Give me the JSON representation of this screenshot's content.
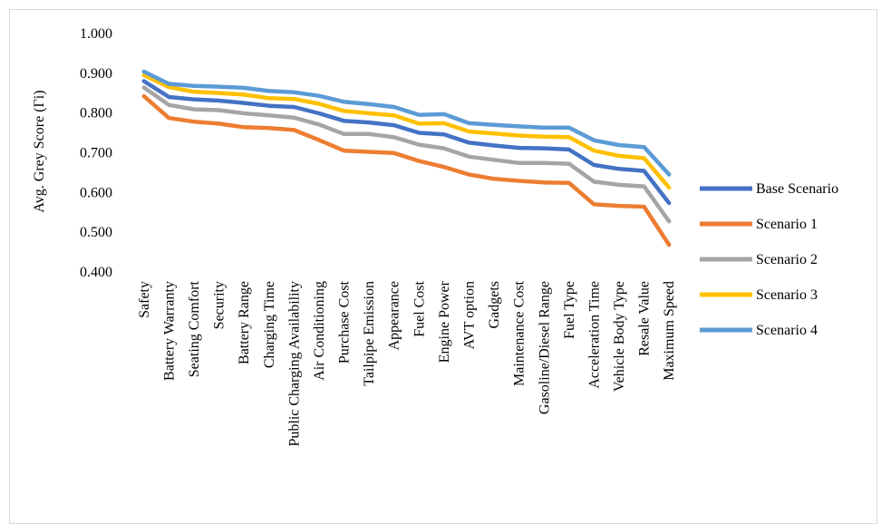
{
  "chart_data": {
    "type": "line",
    "ylabel": "Avg. Grey Score (Γi)",
    "ylim": [
      0.4,
      1.0
    ],
    "yticks": [
      "1.000",
      "0.900",
      "0.800",
      "0.700",
      "0.600",
      "0.500",
      "0.400"
    ],
    "grid": false,
    "legend_position": "right",
    "categories": [
      "Safety",
      "Battery Warranty",
      "Seating Comfort",
      "Security",
      "Battery Range",
      "Charging Time",
      "Public Charging Availability",
      "Air Conditioning",
      "Purchase Cost",
      "Tailpipe Emission",
      "Appearance",
      "Fuel Cost",
      "Engine Power",
      "AVT option",
      "Gadgets",
      "Maintenance Cost",
      "Gasoline/Diesel Range",
      "Fuel Type",
      "Acceleration Time",
      "Vehicle Body Type",
      "Resale Value",
      "Maximum Speed"
    ],
    "series": [
      {
        "name": "Base Scenario",
        "color": "#4472C4",
        "values": [
          0.878,
          0.838,
          0.832,
          0.829,
          0.823,
          0.816,
          0.813,
          0.797,
          0.778,
          0.774,
          0.767,
          0.748,
          0.744,
          0.723,
          0.716,
          0.71,
          0.709,
          0.706,
          0.667,
          0.657,
          0.652,
          0.571
        ]
      },
      {
        "name": "Scenario 1",
        "color": "#ED7D31",
        "values": [
          0.84,
          0.785,
          0.776,
          0.771,
          0.762,
          0.76,
          0.755,
          0.73,
          0.703,
          0.7,
          0.697,
          0.677,
          0.662,
          0.643,
          0.632,
          0.627,
          0.623,
          0.622,
          0.568,
          0.564,
          0.562,
          0.466
        ]
      },
      {
        "name": "Scenario 2",
        "color": "#A5A5A5",
        "values": [
          0.862,
          0.818,
          0.807,
          0.805,
          0.797,
          0.792,
          0.786,
          0.769,
          0.745,
          0.745,
          0.737,
          0.718,
          0.709,
          0.688,
          0.68,
          0.672,
          0.672,
          0.67,
          0.625,
          0.617,
          0.613,
          0.525
        ]
      },
      {
        "name": "Scenario 3",
        "color": "#FFC000",
        "values": [
          0.893,
          0.863,
          0.851,
          0.848,
          0.844,
          0.835,
          0.833,
          0.821,
          0.803,
          0.797,
          0.792,
          0.771,
          0.772,
          0.751,
          0.746,
          0.741,
          0.738,
          0.737,
          0.703,
          0.69,
          0.684,
          0.61
        ]
      },
      {
        "name": "Scenario 4",
        "color": "#5B9BD5",
        "values": [
          0.902,
          0.871,
          0.866,
          0.864,
          0.861,
          0.853,
          0.85,
          0.841,
          0.826,
          0.82,
          0.813,
          0.793,
          0.795,
          0.772,
          0.768,
          0.764,
          0.761,
          0.761,
          0.729,
          0.717,
          0.712,
          0.643
        ]
      }
    ]
  }
}
